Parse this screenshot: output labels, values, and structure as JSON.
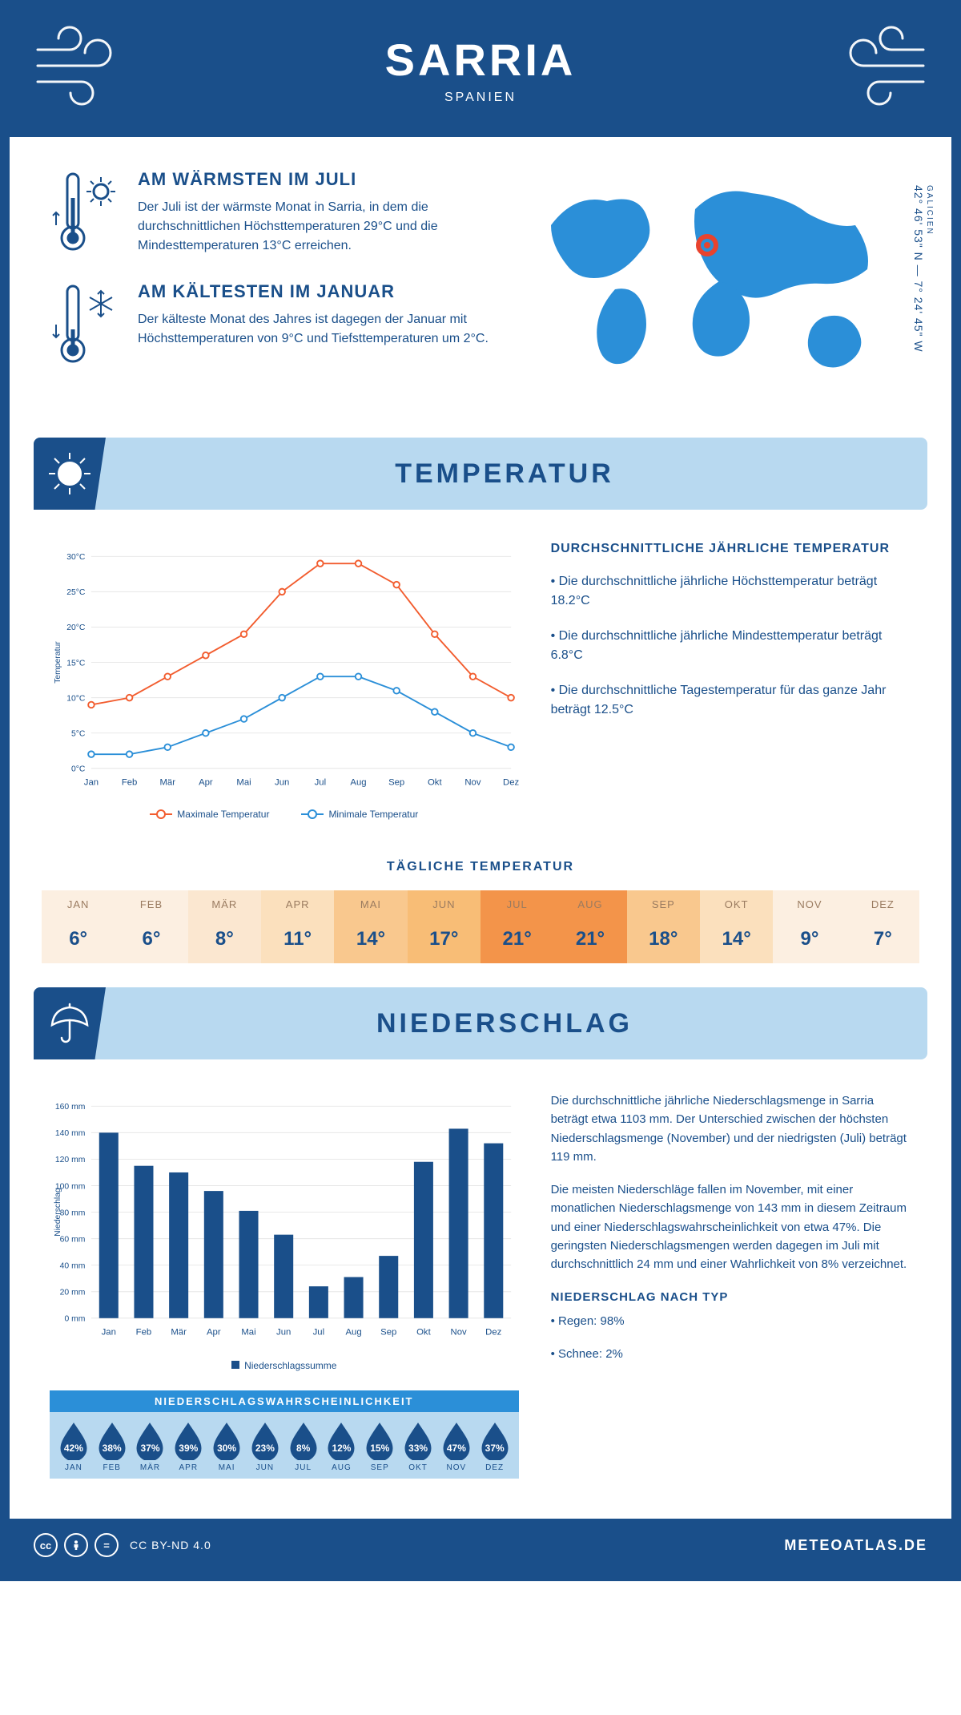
{
  "header": {
    "city": "SARRIA",
    "country": "SPANIEN"
  },
  "coords": {
    "region": "GALICIEN",
    "text": "42° 46' 53\" N — 7° 24' 45\" W"
  },
  "facts": {
    "warm": {
      "title": "AM WÄRMSTEN IM JULI",
      "body": "Der Juli ist der wärmste Monat in Sarria, in dem die durchschnittlichen Höchsttemperaturen 29°C und die Mindesttemperaturen 13°C erreichen."
    },
    "cold": {
      "title": "AM KÄLTESTEN IM JANUAR",
      "body": "Der kälteste Monat des Jahres ist dagegen der Januar mit Höchsttemperaturen von 9°C und Tiefsttemperaturen um 2°C."
    }
  },
  "sections": {
    "temp": "TEMPERATUR",
    "precip": "NIEDERSCHLAG"
  },
  "tempChart": {
    "type": "line",
    "months": [
      "Jan",
      "Feb",
      "Mär",
      "Apr",
      "Mai",
      "Jun",
      "Jul",
      "Aug",
      "Sep",
      "Okt",
      "Nov",
      "Dez"
    ],
    "max": [
      9,
      10,
      13,
      16,
      19,
      25,
      29,
      29,
      26,
      19,
      13,
      10
    ],
    "min": [
      2,
      2,
      3,
      5,
      7,
      10,
      13,
      13,
      11,
      8,
      5,
      3
    ],
    "ylim": [
      0,
      30
    ],
    "ytick_step": 5,
    "yAxisLabel": "Temperatur",
    "colors": {
      "max": "#f25c2e",
      "min": "#2b8fd8",
      "grid": "#e6e6e6",
      "axis": "#1a4f8a"
    },
    "legend_max": "Maximale Temperatur",
    "legend_min": "Minimale Temperatur",
    "line_width": 2,
    "marker_radius": 4
  },
  "tempText": {
    "title": "DURCHSCHNITTLICHE JÄHRLICHE TEMPERATUR",
    "l1": "• Die durchschnittliche jährliche Höchsttemperatur beträgt 18.2°C",
    "l2": "• Die durchschnittliche jährliche Mindesttemperatur beträgt 6.8°C",
    "l3": "• Die durchschnittliche Tagestemperatur für das ganze Jahr beträgt 12.5°C"
  },
  "daily": {
    "title": "TÄGLICHE TEMPERATUR",
    "months": [
      "JAN",
      "FEB",
      "MÄR",
      "APR",
      "MAI",
      "JUN",
      "JUL",
      "AUG",
      "SEP",
      "OKT",
      "NOV",
      "DEZ"
    ],
    "values": [
      "6°",
      "6°",
      "8°",
      "11°",
      "14°",
      "17°",
      "21°",
      "21°",
      "18°",
      "14°",
      "9°",
      "7°"
    ],
    "cell_colors": [
      "#fcefe1",
      "#fcefe1",
      "#fbe7d0",
      "#fbe0bd",
      "#f9c88e",
      "#f8bd76",
      "#f3944a",
      "#f3944a",
      "#f9c88e",
      "#fbe0bd",
      "#fcefe1",
      "#fcefe1"
    ]
  },
  "precipChart": {
    "type": "bar",
    "months": [
      "Jan",
      "Feb",
      "Mär",
      "Apr",
      "Mai",
      "Jun",
      "Jul",
      "Aug",
      "Sep",
      "Okt",
      "Nov",
      "Dez"
    ],
    "values": [
      140,
      115,
      110,
      96,
      81,
      63,
      24,
      31,
      47,
      118,
      143,
      132
    ],
    "ylim": [
      0,
      160
    ],
    "ytick_step": 20,
    "yAxisLabel": "Niederschlag",
    "bar_color": "#1a4f8a",
    "grid": "#e6e6e6",
    "axis": "#1a4f8a",
    "bar_width": 0.55,
    "legend": "Niederschlagssumme"
  },
  "precipText": {
    "p1": "Die durchschnittliche jährliche Niederschlagsmenge in Sarria beträgt etwa 1103 mm. Der Unterschied zwischen der höchsten Niederschlagsmenge (November) und der niedrigsten (Juli) beträgt 119 mm.",
    "p2": "Die meisten Niederschläge fallen im November, mit einer monatlichen Niederschlagsmenge von 143 mm in diesem Zeitraum und einer Niederschlagswahrscheinlichkeit von etwa 47%. Die geringsten Niederschlagsmengen werden dagegen im Juli mit durchschnittlich 24 mm und einer Wahrlichkeit von 8% verzeichnet.",
    "type_title": "NIEDERSCHLAG NACH TYP",
    "rain": "• Regen: 98%",
    "snow": "• Schnee: 2%"
  },
  "prob": {
    "title": "NIEDERSCHLAGSWAHRSCHEINLICHKEIT",
    "months": [
      "JAN",
      "FEB",
      "MÄR",
      "APR",
      "MAI",
      "JUN",
      "JUL",
      "AUG",
      "SEP",
      "OKT",
      "NOV",
      "DEZ"
    ],
    "values": [
      "42%",
      "38%",
      "37%",
      "39%",
      "30%",
      "23%",
      "8%",
      "12%",
      "15%",
      "33%",
      "47%",
      "37%"
    ],
    "row_bg": "#b8d9f0",
    "title_bg": "#2b8fd8",
    "drop_fill": "#1a4f8a",
    "drop_stroke": "#1a4f8a"
  },
  "footer": {
    "license": "CC BY-ND 4.0",
    "brand": "METEOATLAS.DE"
  }
}
